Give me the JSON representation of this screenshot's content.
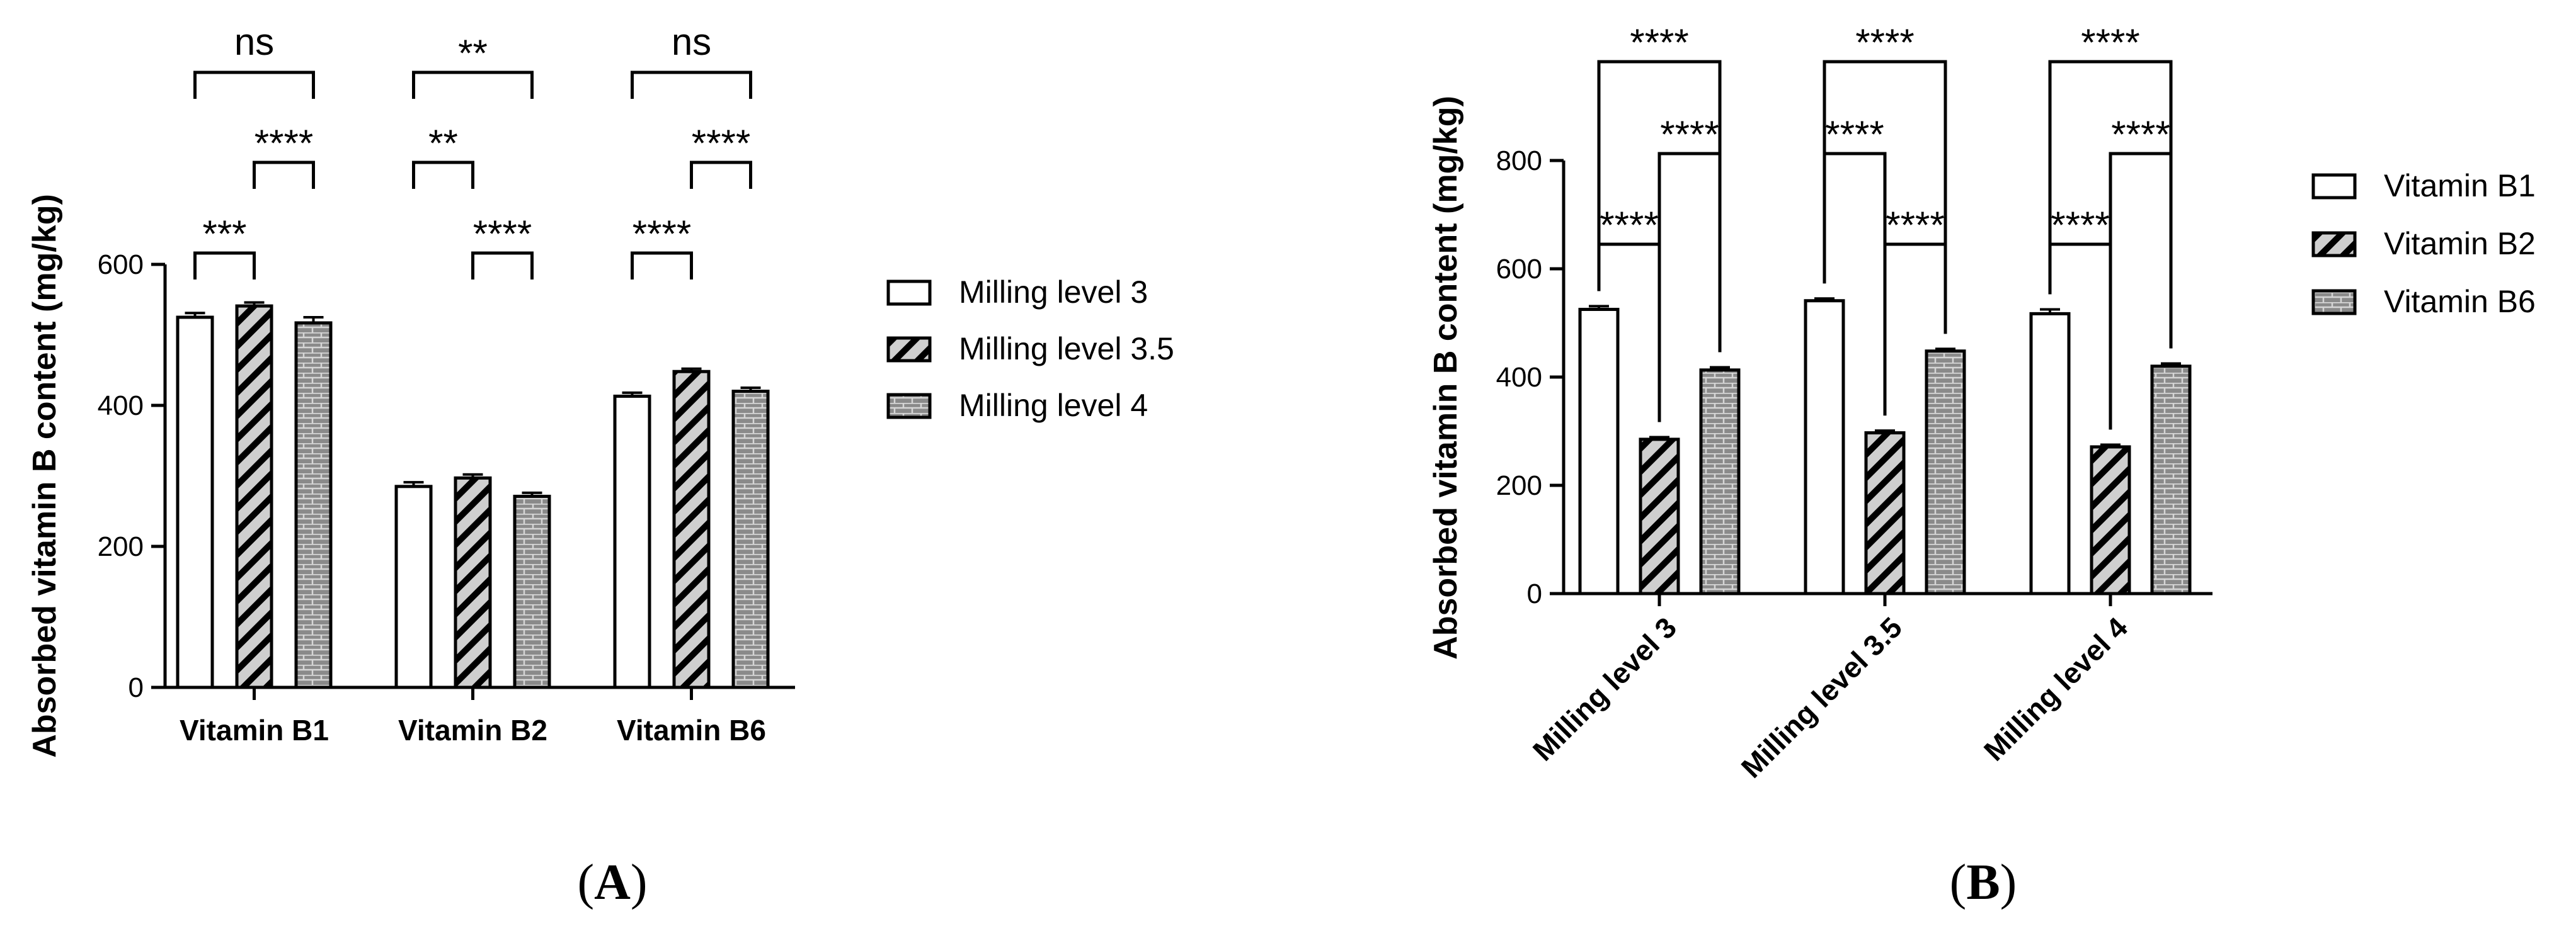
{
  "colors": {
    "axis": "#000000",
    "background": "#ffffff",
    "hatch_fill": "#cfcfcf",
    "brick_fill": "#8a8a8a",
    "brick_mortar": "#d6d6d6"
  },
  "chart_data": [
    {
      "type": "bar",
      "panel_label": "A",
      "title": "",
      "xlabel": "",
      "ylabel": "Absorbed vitamin B content (mg/kg)",
      "ylim": [
        0,
        600
      ],
      "yticks": [
        "0",
        "200",
        "400",
        "600"
      ],
      "categories": [
        "Vitamin B1",
        "Vitamin B2",
        "Vitamin B6"
      ],
      "series": [
        {
          "name": "Milling level 3",
          "pattern": "open",
          "values": [
            525,
            285,
            413
          ],
          "errors": [
            6,
            6,
            5
          ]
        },
        {
          "name": "Milling level 3.5",
          "pattern": "hatch",
          "values": [
            541,
            297,
            448
          ],
          "errors": [
            5,
            5,
            4
          ]
        },
        {
          "name": "Milling level 4",
          "pattern": "brick",
          "values": [
            517,
            271,
            420
          ],
          "errors": [
            8,
            5,
            5
          ]
        }
      ],
      "legend_position": "right",
      "significance": [
        {
          "category": 0,
          "from": 0,
          "to": 1,
          "label": "***"
        },
        {
          "category": 0,
          "from": 1,
          "to": 2,
          "label": "****"
        },
        {
          "category": 0,
          "from": 0,
          "to": 2,
          "label": "ns"
        },
        {
          "category": 1,
          "from": 1,
          "to": 2,
          "label": "****"
        },
        {
          "category": 1,
          "from": 0,
          "to": 1,
          "label": "**"
        },
        {
          "category": 1,
          "from": 0,
          "to": 2,
          "label": "**"
        },
        {
          "category": 2,
          "from": 0,
          "to": 1,
          "label": "****"
        },
        {
          "category": 2,
          "from": 1,
          "to": 2,
          "label": "****"
        },
        {
          "category": 2,
          "from": 0,
          "to": 2,
          "label": "ns"
        }
      ]
    },
    {
      "type": "bar",
      "panel_label": "B",
      "title": "",
      "xlabel": "",
      "ylabel": "Absorbed vitamin B content (mg/kg)",
      "ylim": [
        0,
        800
      ],
      "yticks": [
        "0",
        "200",
        "400",
        "600",
        "800"
      ],
      "categories": [
        "Milling level 3",
        "Milling level 3.5",
        "Milling level 4"
      ],
      "series": [
        {
          "name": "Vitamin B1",
          "pattern": "open",
          "values": [
            525,
            541,
            517
          ],
          "errors": [
            6,
            4,
            8
          ]
        },
        {
          "name": "Vitamin B2",
          "pattern": "hatch",
          "values": [
            285,
            297,
            271
          ],
          "errors": [
            4,
            4,
            4
          ]
        },
        {
          "name": "Vitamin B6",
          "pattern": "brick",
          "values": [
            413,
            448,
            420
          ],
          "errors": [
            5,
            4,
            5
          ]
        }
      ],
      "legend_position": "right",
      "significance": [
        {
          "category": 0,
          "from": 0,
          "to": 1,
          "label": "****"
        },
        {
          "category": 0,
          "from": 1,
          "to": 2,
          "label": "****"
        },
        {
          "category": 0,
          "from": 0,
          "to": 2,
          "label": "****"
        },
        {
          "category": 1,
          "from": 1,
          "to": 2,
          "label": "****"
        },
        {
          "category": 1,
          "from": 0,
          "to": 1,
          "label": "****"
        },
        {
          "category": 1,
          "from": 0,
          "to": 2,
          "label": "****"
        },
        {
          "category": 2,
          "from": 0,
          "to": 1,
          "label": "****"
        },
        {
          "category": 2,
          "from": 1,
          "to": 2,
          "label": "****"
        },
        {
          "category": 2,
          "from": 0,
          "to": 2,
          "label": "****"
        }
      ]
    }
  ]
}
